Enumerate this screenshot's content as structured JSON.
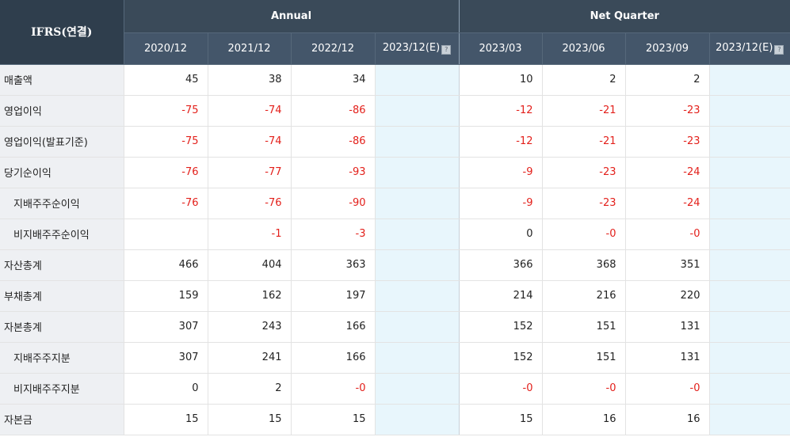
{
  "header": {
    "corner": "IFRS(연결)",
    "annual_label": "Annual",
    "quarter_label": "Net Quarter",
    "estimate_icon": "info-icon",
    "periods": [
      "2020/12",
      "2021/12",
      "2022/12",
      "2023/12(E)",
      "2023/03",
      "2023/06",
      "2023/09",
      "2023/12(E)"
    ]
  },
  "rows": [
    {
      "label": "매출액",
      "values": [
        "45",
        "38",
        "34",
        "",
        "10",
        "2",
        "2",
        ""
      ]
    },
    {
      "label": "영업이익",
      "values": [
        "-75",
        "-74",
        "-86",
        "",
        "-12",
        "-21",
        "-23",
        ""
      ]
    },
    {
      "label": "영업이익(발표기준)",
      "values": [
        "-75",
        "-74",
        "-86",
        "",
        "-12",
        "-21",
        "-23",
        ""
      ]
    },
    {
      "label": "당기순이익",
      "values": [
        "-76",
        "-77",
        "-93",
        "",
        "-9",
        "-23",
        "-24",
        ""
      ]
    },
    {
      "label": "지배주주순이익",
      "values": [
        "-76",
        "-76",
        "-90",
        "",
        "-9",
        "-23",
        "-24",
        ""
      ]
    },
    {
      "label": "비지배주주순이익",
      "values": [
        "",
        "-1",
        "-3",
        "",
        "0",
        "-0",
        "-0",
        ""
      ]
    },
    {
      "label": "자산총계",
      "values": [
        "466",
        "404",
        "363",
        "",
        "366",
        "368",
        "351",
        ""
      ]
    },
    {
      "label": "부채총계",
      "values": [
        "159",
        "162",
        "197",
        "",
        "214",
        "216",
        "220",
        ""
      ]
    },
    {
      "label": "자본총계",
      "values": [
        "307",
        "243",
        "166",
        "",
        "152",
        "151",
        "131",
        ""
      ]
    },
    {
      "label": "지배주주지분",
      "values": [
        "307",
        "241",
        "166",
        "",
        "152",
        "151",
        "131",
        ""
      ]
    },
    {
      "label": "비지배주주지분",
      "values": [
        "0",
        "2",
        "-0",
        "",
        "-0",
        "-0",
        "-0",
        ""
      ]
    },
    {
      "label": "자본금",
      "values": [
        "15",
        "15",
        "15",
        "",
        "15",
        "16",
        "16",
        ""
      ]
    }
  ],
  "colors": {
    "header_bg": "#3a4a59",
    "label_bg": "#eef0f3",
    "estimate_bg": "#e8f6fc",
    "negative": "#e3201b"
  }
}
